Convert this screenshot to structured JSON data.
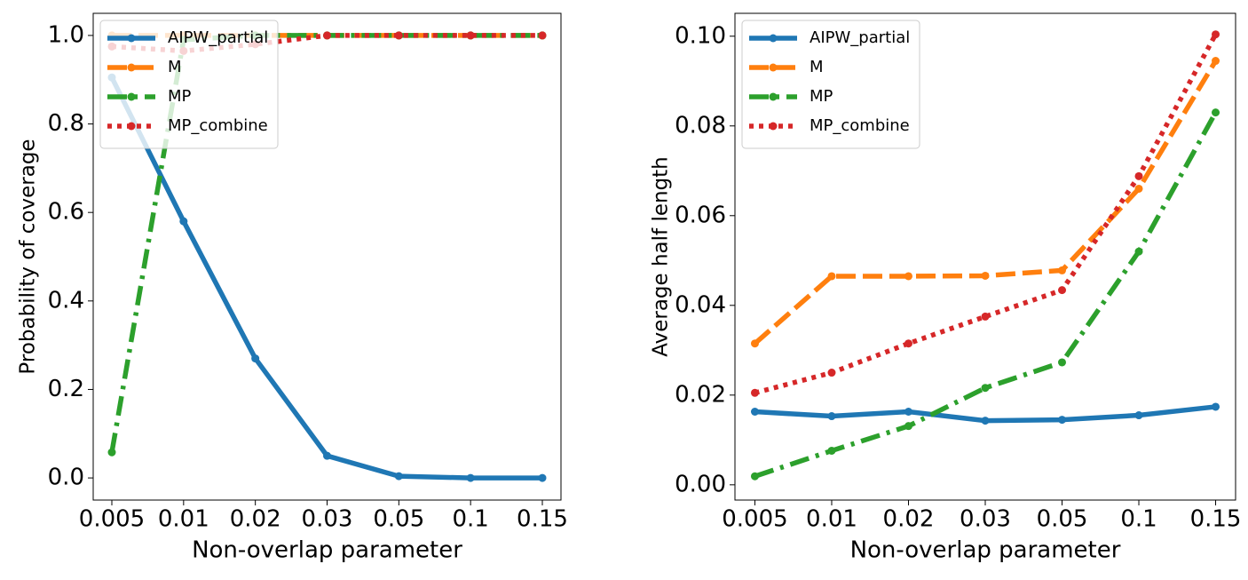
{
  "chart_data": [
    {
      "type": "line",
      "xlabel": "Non-overlap parameter",
      "ylabel": "Probability of coverage",
      "categories": [
        "0.005",
        "0.01",
        "0.02",
        "0.03",
        "0.05",
        "0.1",
        "0.15"
      ],
      "ylim": [
        -0.05,
        1.05
      ],
      "yticks": [
        {
          "value": 0,
          "label": "0.0"
        },
        0.2,
        0.4,
        0.6,
        0.8,
        {
          "value": 1,
          "label": "1.0"
        }
      ],
      "legend": "upper left",
      "series": [
        {
          "name": "AIPW_partial",
          "color": "#1f77b4",
          "linestyle": "solid",
          "values": [
            0.905,
            0.58,
            0.27,
            0.05,
            0.004,
            0.0,
            0.0
          ]
        },
        {
          "name": "M",
          "color": "#ff7f0e",
          "linestyle": "dashed",
          "values": [
            1.0,
            1.0,
            1.0,
            1.0,
            1.0,
            1.0,
            1.0
          ]
        },
        {
          "name": "MP",
          "color": "#2ca02c",
          "linestyle": "dashdot",
          "values": [
            0.058,
            0.99,
            1.0,
            1.0,
            1.0,
            1.0,
            1.0
          ]
        },
        {
          "name": "MP_combine",
          "color": "#d62728",
          "linestyle": "dotted",
          "values": [
            0.975,
            0.965,
            0.98,
            1.0,
            1.0,
            1.0,
            1.0
          ]
        }
      ]
    },
    {
      "type": "line",
      "xlabel": "Non-overlap parameter",
      "ylabel": "Average half length",
      "categories": [
        "0.005",
        "0.01",
        "0.02",
        "0.03",
        "0.05",
        "0.1",
        "0.15"
      ],
      "ylim": [
        -0.0034,
        0.1051
      ],
      "yticks": [
        {
          "value": 0,
          "label": "0.00"
        },
        {
          "value": 0.02,
          "label": "0.02"
        },
        {
          "value": 0.04,
          "label": "0.04"
        },
        {
          "value": 0.06,
          "label": "0.06"
        },
        {
          "value": 0.08,
          "label": "0.08"
        },
        {
          "value": 0.1,
          "label": "0.10"
        }
      ],
      "legend": "upper left",
      "series": [
        {
          "name": "AIPW_partial",
          "color": "#1f77b4",
          "linestyle": "solid",
          "values": [
            0.0163,
            0.0153,
            0.0163,
            0.0143,
            0.0145,
            0.0155,
            0.0174
          ]
        },
        {
          "name": "M",
          "color": "#ff7f0e",
          "linestyle": "dashed",
          "values": [
            0.0315,
            0.0465,
            0.0465,
            0.0466,
            0.0478,
            0.066,
            0.0945
          ]
        },
        {
          "name": "MP",
          "color": "#2ca02c",
          "linestyle": "dashdot",
          "values": [
            0.0019,
            0.0076,
            0.0131,
            0.0216,
            0.0273,
            0.052,
            0.083
          ]
        },
        {
          "name": "MP_combine",
          "color": "#d62728",
          "linestyle": "dotted",
          "values": [
            0.0205,
            0.025,
            0.0315,
            0.0375,
            0.0434,
            0.0688,
            0.1004
          ]
        }
      ]
    }
  ]
}
